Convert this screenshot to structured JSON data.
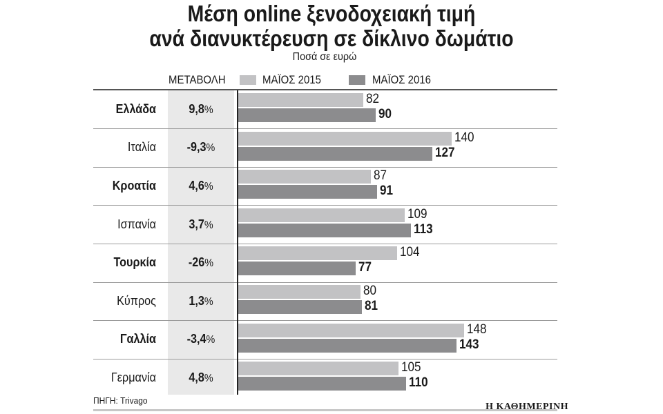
{
  "colors": {
    "series_2015": "#c2c2c4",
    "series_2016": "#8c8c8e",
    "change_band": "#e9e9e9"
  },
  "chart_data": {
    "type": "bar",
    "orientation": "horizontal",
    "title_line1": "Μέση online ξενοδοχειακή τιμή",
    "title_line2": "ανά διανυκτέρευση σε δίκλινο δωμάτιο",
    "subtitle": "Ποσά σε ευρώ",
    "change_header": "ΜΕΤΑΒΟΛΗ",
    "legend_position": "top",
    "categories": [
      "Ελλάδα",
      "Ιταλία",
      "Κροατία",
      "Ισπανία",
      "Τουρκία",
      "Κύπρος",
      "Γαλλία",
      "Γερμανία"
    ],
    "bold_categories": [
      true,
      false,
      true,
      false,
      true,
      false,
      true,
      false
    ],
    "change": [
      "9,8",
      "-9,3",
      "4,6",
      "3,7",
      "-26",
      "1,3",
      "-3,4",
      "4,8"
    ],
    "change_unit": "%",
    "series": [
      {
        "name": "ΜΑΪΟΣ 2015",
        "values": [
          82,
          140,
          87,
          109,
          104,
          80,
          148,
          105
        ]
      },
      {
        "name": "ΜΑΪΟΣ 2016",
        "values": [
          90,
          127,
          91,
          113,
          77,
          81,
          143,
          110
        ]
      }
    ],
    "xlim": [
      0,
      148
    ],
    "grid": false
  },
  "footer": {
    "source": "ΠΗΓΗ: Trivago",
    "brand": "Η ΚΑΘΗΜΕΡΙΝΗ"
  }
}
